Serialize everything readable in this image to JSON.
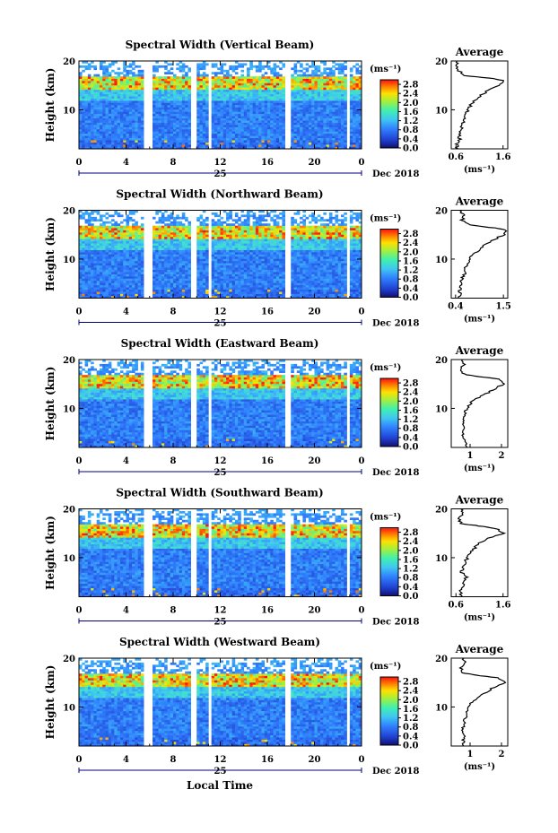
{
  "chart_data": {
    "type": "heatmap",
    "figure": {
      "xlabel_bottom": "Local Time",
      "date_label": "Dec 2018",
      "day_label": "25",
      "colorbar_unit": "(ms⁻¹)",
      "colorbar_ticks": [
        "0.0",
        "0.4",
        "0.8",
        "1.2",
        "1.6",
        "2.0",
        "2.4",
        "2.8"
      ],
      "colorbar_range": [
        0.0,
        3.0
      ],
      "heatmap_ylabel": "Height (km)",
      "x_ticks": [
        "0",
        "4",
        "8",
        "12",
        "16",
        "20",
        "0"
      ],
      "x_range_hours": [
        0,
        24
      ],
      "y_range_km": [
        2,
        20
      ],
      "y_ticks": [
        "10",
        "20"
      ],
      "data_gaps_hours": [
        [
          5.6,
          6.2
        ],
        [
          9.4,
          10.0
        ],
        [
          11.0,
          11.3
        ],
        [
          17.6,
          18.0
        ],
        [
          22.8,
          23.0
        ]
      ],
      "avg_title": "Average",
      "avg_xlabel": "(ms⁻¹)",
      "colors": {
        "low": "#1010a0",
        "mid_low": "#3060ff",
        "mid": "#40e0e0",
        "mid_high": "#80ff40",
        "high": "#ffe000",
        "max": "#ff2020"
      }
    },
    "panels": [
      {
        "title": "Spectral Width (Vertical Beam)",
        "avg_xticks": [
          "0.6",
          "1.6"
        ],
        "avg_xlim": [
          0.5,
          1.7
        ],
        "avg_profile": {
          "height_km": [
            2,
            3,
            4,
            5,
            6,
            7,
            8,
            9,
            10,
            11,
            12,
            13,
            14,
            15,
            16,
            16.5,
            17,
            18,
            19,
            20
          ],
          "value": [
            0.62,
            0.62,
            0.68,
            0.66,
            0.72,
            0.74,
            0.76,
            0.82,
            0.85,
            0.92,
            1.02,
            1.12,
            1.3,
            1.52,
            1.62,
            1.3,
            0.8,
            0.66,
            0.6,
            0.62
          ]
        }
      },
      {
        "title": "Spectral Width (Northward Beam)",
        "avg_xticks": [
          "0.4",
          "1.5"
        ],
        "avg_xlim": [
          0.3,
          1.6
        ],
        "avg_profile": {
          "height_km": [
            2,
            3,
            4,
            5,
            6,
            7,
            8,
            9,
            10,
            11,
            12,
            13,
            14,
            15,
            16,
            16.5,
            17,
            18,
            19,
            20
          ],
          "value": [
            0.5,
            0.5,
            0.5,
            0.52,
            0.55,
            0.6,
            0.62,
            0.65,
            0.72,
            0.8,
            0.95,
            1.1,
            1.28,
            1.5,
            1.55,
            1.2,
            0.7,
            0.55,
            0.6,
            0.5
          ]
        }
      },
      {
        "title": "Spectral Width (Eastward Beam)",
        "avg_xticks": [
          "1",
          "2"
        ],
        "avg_xlim": [
          0.4,
          2.2
        ],
        "avg_profile": {
          "height_km": [
            2,
            3,
            4,
            5,
            6,
            7,
            8,
            9,
            10,
            11,
            12,
            13,
            14,
            15,
            16,
            16.5,
            17,
            18,
            19,
            20
          ],
          "value": [
            0.9,
            0.85,
            0.8,
            0.75,
            0.78,
            0.82,
            0.8,
            0.85,
            0.9,
            1.0,
            1.2,
            1.5,
            1.8,
            2.05,
            1.9,
            1.3,
            0.8,
            0.7,
            0.8,
            0.75
          ]
        }
      },
      {
        "title": "Spectral Width (Southward Beam)",
        "avg_xticks": [
          "0.6",
          "1.6"
        ],
        "avg_xlim": [
          0.5,
          1.7
        ],
        "avg_profile": {
          "height_km": [
            2,
            3,
            4,
            5,
            6,
            7,
            8,
            9,
            10,
            11,
            12,
            13,
            14,
            15,
            16,
            16.5,
            17,
            18,
            19,
            20
          ],
          "value": [
            0.72,
            0.7,
            0.74,
            0.78,
            0.82,
            0.72,
            0.76,
            0.8,
            0.84,
            0.9,
            1.0,
            1.1,
            1.3,
            1.6,
            1.45,
            1.1,
            0.7,
            0.66,
            0.75,
            0.7
          ]
        }
      },
      {
        "title": "Spectral Width (Westward Beam)",
        "avg_xticks": [
          "1",
          "2"
        ],
        "avg_xlim": [
          0.4,
          2.2
        ],
        "avg_profile": {
          "height_km": [
            2,
            3,
            4,
            5,
            6,
            7,
            8,
            9,
            10,
            11,
            12,
            13,
            14,
            15,
            16,
            16.5,
            17,
            18,
            19,
            20
          ],
          "value": [
            0.8,
            0.78,
            0.8,
            0.75,
            0.78,
            0.82,
            0.88,
            0.92,
            0.98,
            1.05,
            1.25,
            1.5,
            1.75,
            2.1,
            1.9,
            1.2,
            0.75,
            0.7,
            0.85,
            0.8
          ]
        }
      }
    ]
  }
}
